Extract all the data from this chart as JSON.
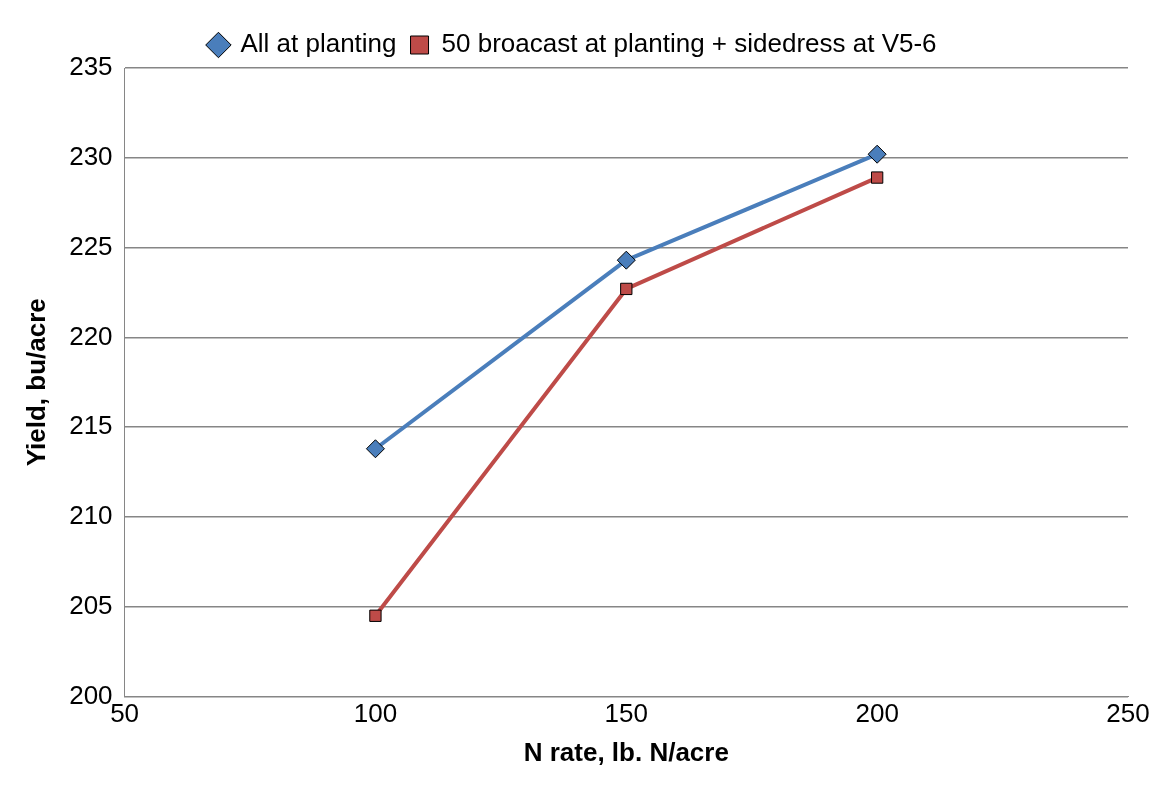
{
  "chart_data": {
    "type": "line",
    "xlabel": "N rate, lb. N/acre",
    "ylabel": "Yield, bu/acre",
    "x": [
      100,
      150,
      200
    ],
    "series": [
      {
        "name": "All at planting",
        "color": "#4a7ebb",
        "marker": "diamond",
        "values": [
          213.8,
          224.3,
          230.2
        ]
      },
      {
        "name": "50 broacast at planting + sidedress at V5-6",
        "color": "#be4b48",
        "marker": "square",
        "values": [
          204.5,
          222.7,
          228.9
        ]
      }
    ],
    "xlim": [
      50,
      250
    ],
    "xticks": [
      50,
      100,
      150,
      200,
      250
    ],
    "ylim": [
      200,
      235
    ],
    "yticks": [
      200,
      205,
      210,
      215,
      220,
      225,
      230,
      235
    ],
    "grid": "y",
    "legend": "top"
  }
}
